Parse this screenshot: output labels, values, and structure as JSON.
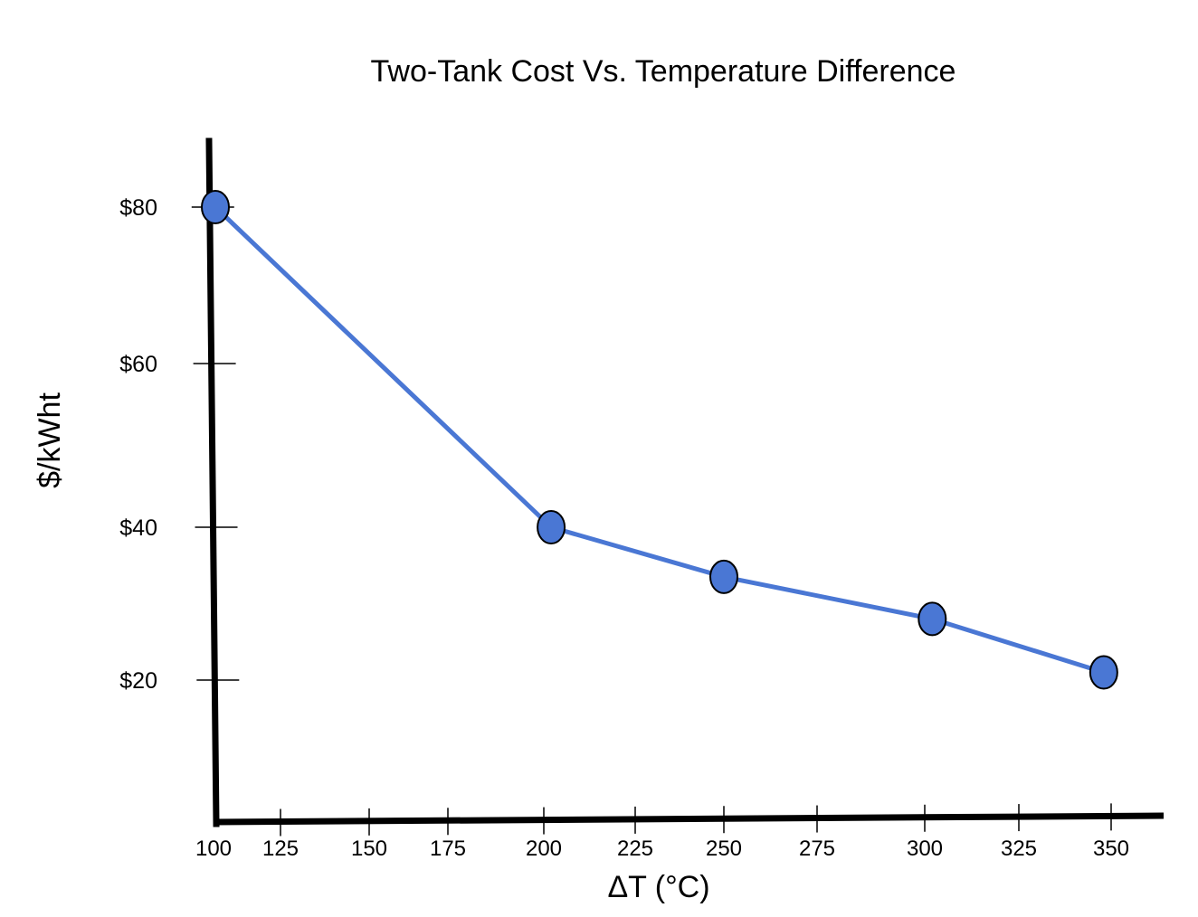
{
  "chart_data": {
    "type": "line",
    "title": "Two-Tank Cost Vs. Temperature Difference",
    "xlabel": "ΔT (°C)",
    "ylabel": "$/kWht",
    "x_ticks": [
      100,
      125,
      150,
      175,
      200,
      225,
      250,
      275,
      300,
      325,
      350
    ],
    "x_tick_labels": [
      "100",
      "125",
      "150",
      "175",
      "200",
      "225",
      "250",
      "275",
      "300",
      "325",
      "350"
    ],
    "y_ticks": [
      20,
      40,
      60,
      80
    ],
    "y_tick_labels": [
      "$20",
      "$40",
      "$60",
      "$80"
    ],
    "xlim": [
      100,
      365
    ],
    "ylim": [
      0,
      88
    ],
    "grid": false,
    "legend": "none",
    "series": [
      {
        "name": "Two-Tank Cost",
        "color": "#4a77d4",
        "marker_color": "#4a77d4",
        "marker_edge_color": "#000000",
        "x": [
          100,
          202,
          250,
          302,
          348
        ],
        "y": [
          80,
          40,
          33.5,
          28,
          21
        ]
      }
    ]
  }
}
